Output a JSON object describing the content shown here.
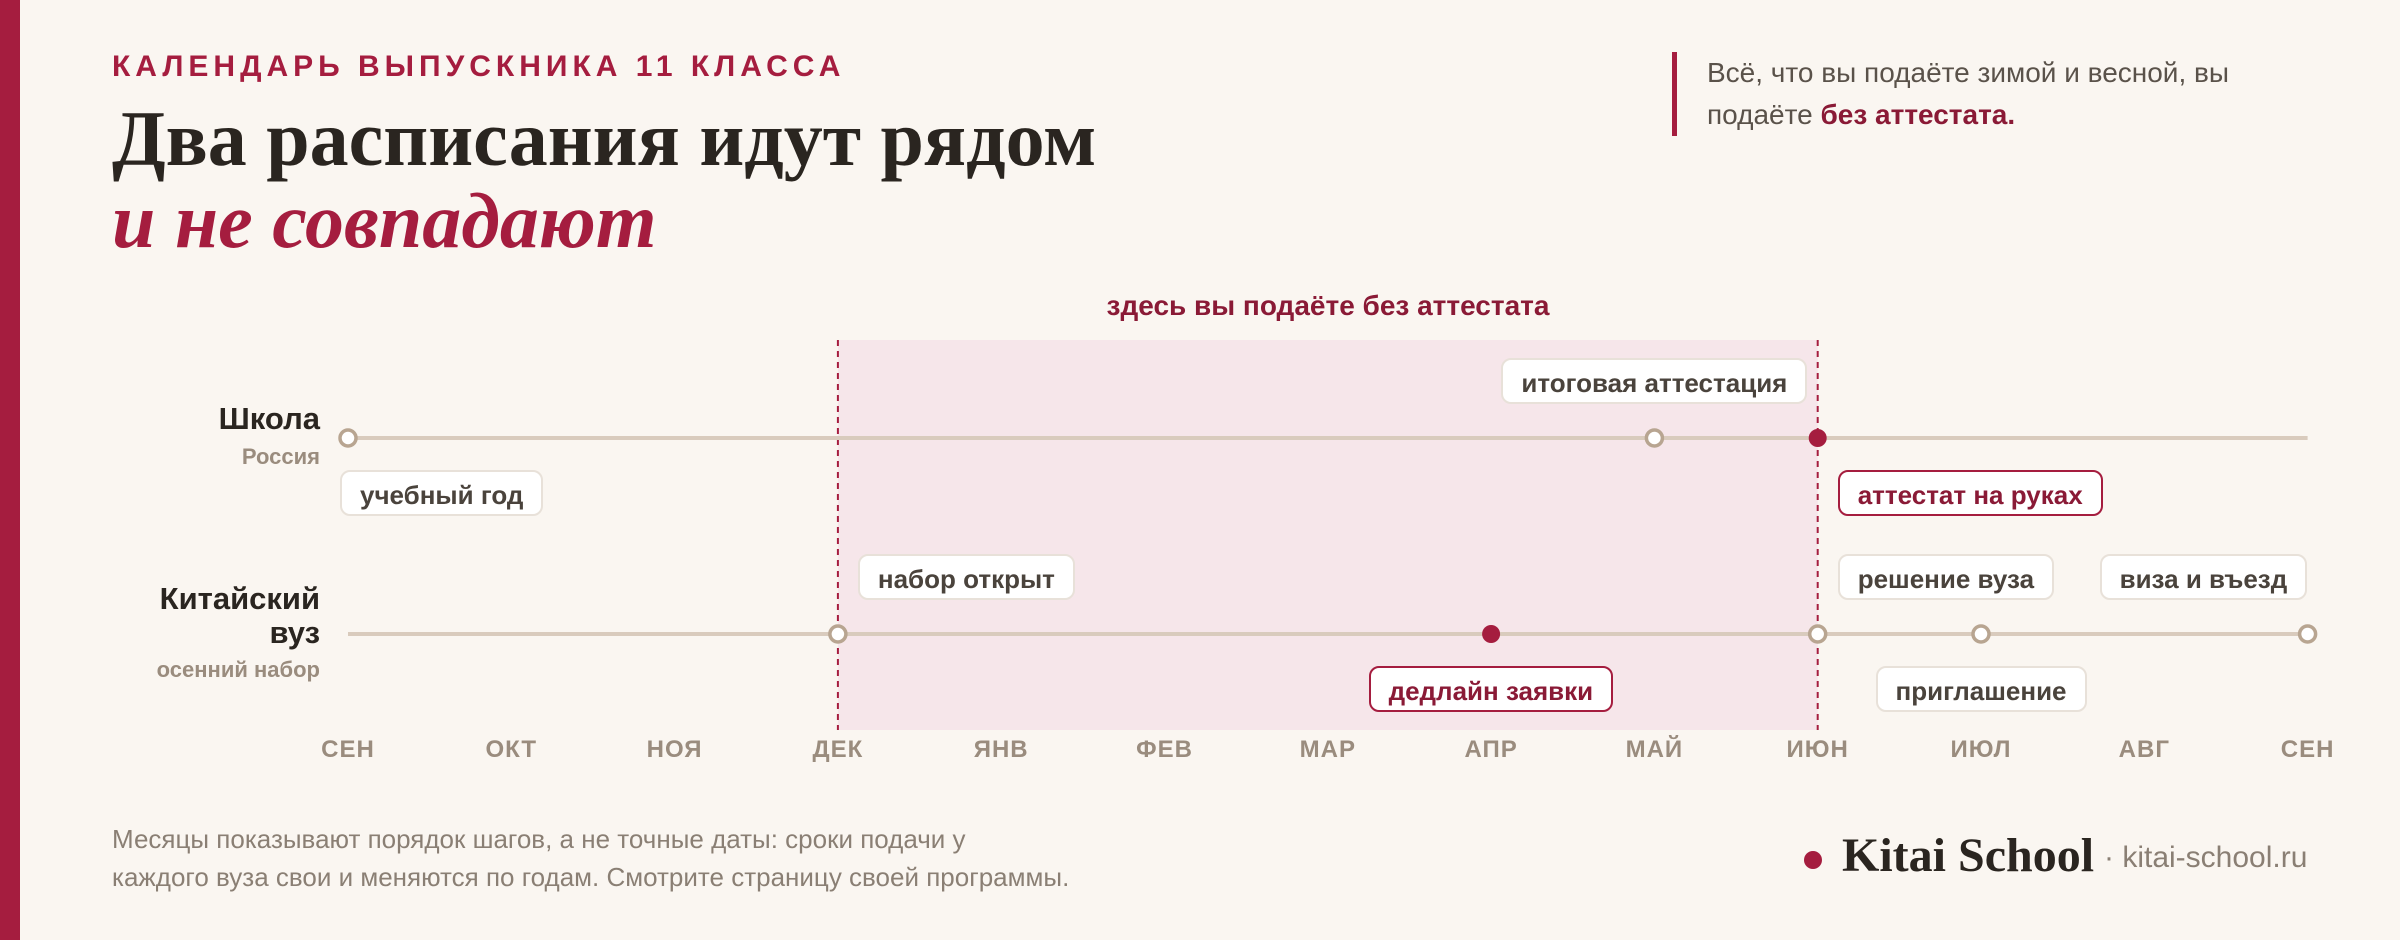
{
  "header": {
    "eyebrow": "КАЛЕНДАРЬ ВЫПУСКНИКА 11 КЛАССА",
    "title_line1": "Два расписания идут рядом",
    "title_line2": "и не совпадают"
  },
  "note": {
    "text_part1": "Всё, что вы подаёте зимой и весной, вы подаёте ",
    "text_strong": "без аттестата."
  },
  "band": {
    "caption": "здесь вы подаёте без аттестата",
    "from_month_index": 3,
    "to_month_index": 9
  },
  "months": [
    "СЕН",
    "ОКТ",
    "НОЯ",
    "ДЕК",
    "ЯНВ",
    "ФЕВ",
    "МАР",
    "АПР",
    "МАЙ",
    "ИЮН",
    "ИЮЛ",
    "АВГ",
    "СЕН"
  ],
  "lanes": [
    {
      "label": "Школа",
      "sub": "Россия",
      "line_from": 0,
      "line_to": 12,
      "milestones": [
        {
          "month_index": 0,
          "style": "open"
        },
        {
          "month_index": 8,
          "style": "open"
        },
        {
          "month_index": 9,
          "style": "filled"
        }
      ],
      "events": [
        {
          "label": "учебный год",
          "month_index": 0,
          "position": "below",
          "highlight": false
        },
        {
          "label": "итоговая аттестация",
          "month_index": 8,
          "position": "above",
          "highlight": false
        },
        {
          "label": "аттестат на руках",
          "month_index": 9,
          "position": "below",
          "highlight": true
        }
      ]
    },
    {
      "label": "Китайский вуз",
      "sub": "осенний набор",
      "line_from": 0,
      "line_to": 12,
      "milestones": [
        {
          "month_index": 3,
          "style": "open"
        },
        {
          "month_index": 7,
          "style": "filled"
        },
        {
          "month_index": 9,
          "style": "open"
        },
        {
          "month_index": 10,
          "style": "open"
        },
        {
          "month_index": 12,
          "style": "open"
        }
      ],
      "events": [
        {
          "label": "набор открыт",
          "month_index": 3,
          "position": "above",
          "highlight": false
        },
        {
          "label": "дедлайн заявки",
          "month_index": 7,
          "position": "below",
          "highlight": true
        },
        {
          "label": "решение вуза",
          "month_index": 9,
          "position": "above",
          "highlight": false
        },
        {
          "label": "приглашение",
          "month_index": 10,
          "position": "below",
          "highlight": false
        },
        {
          "label": "виза и въезд",
          "month_index": 12,
          "position": "above",
          "highlight": false
        }
      ]
    }
  ],
  "footer": {
    "note_line1": "Месяцы показывают порядок шагов, а не точные даты: сроки подачи у",
    "note_line2": "каждого вуза свои и меняются по годам. Смотрите страницу своей программы.",
    "brand": "Kitai School",
    "url": "· kitai-school.ru"
  },
  "colors": {
    "accent": "#a51d3f",
    "accent_dark": "#8a1a36",
    "track": "#d9cbbd",
    "band_fill": "#f6e6ea",
    "background": "#faf6f1"
  }
}
